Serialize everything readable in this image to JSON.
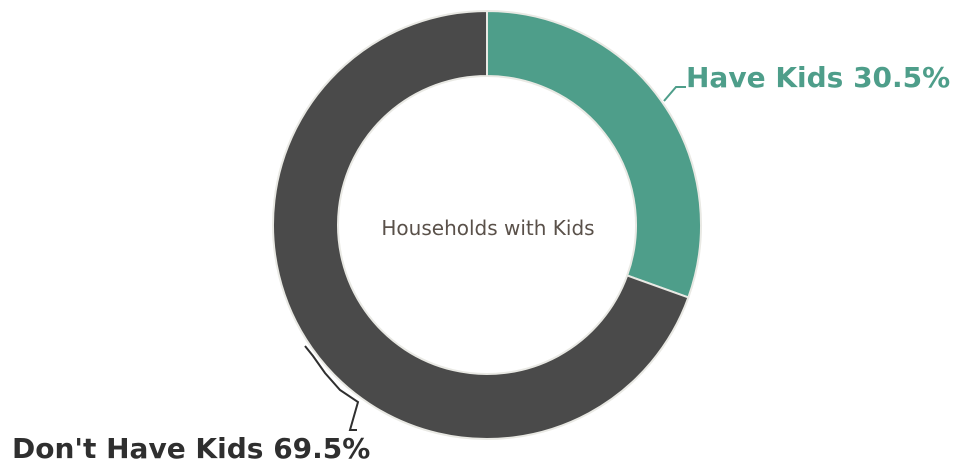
{
  "chart_data": {
    "type": "pie",
    "title": "",
    "center_label": "Households with Kids",
    "slices": [
      {
        "label": "Have Kids",
        "value": 30.5,
        "display": "Have Kids 30.5%",
        "color": "#4e9e8a",
        "label_color": "#4e9e8a"
      },
      {
        "label": "Don't Have Kids",
        "value": 69.5,
        "display": "Don't Have Kids 69.5%",
        "color": "#4a4a4a",
        "label_color": "#2f2f2f"
      }
    ]
  }
}
